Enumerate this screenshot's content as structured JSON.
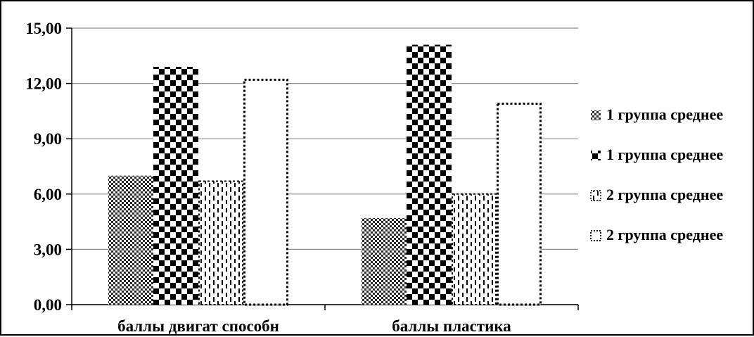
{
  "chart_data": {
    "type": "bar",
    "categories": [
      "баллы двигат способн",
      "баллы пластика"
    ],
    "series": [
      {
        "name": "1 группа среднее",
        "values": [
          7.0,
          4.7
        ],
        "pattern": "fine-checker"
      },
      {
        "name": "1 группа среднее",
        "values": [
          12.9,
          14.1
        ],
        "pattern": "coarse-checker"
      },
      {
        "name": "2 группа среднее",
        "values": [
          6.7,
          6.0
        ],
        "pattern": "dashed-stripes"
      },
      {
        "name": "2 группа среднее",
        "values": [
          12.2,
          10.9
        ],
        "pattern": "dotted-outline"
      }
    ],
    "y_ticks": [
      "0,00",
      "3,00",
      "6,00",
      "9,00",
      "12,00",
      "15,00"
    ],
    "ylim": [
      0,
      15
    ],
    "grid": true,
    "legend_position": "right",
    "colors": {
      "ink": "#000000",
      "grid": "#8c8c8c",
      "fine_checker": "#2a2a2a",
      "background": "#ffffff"
    }
  }
}
